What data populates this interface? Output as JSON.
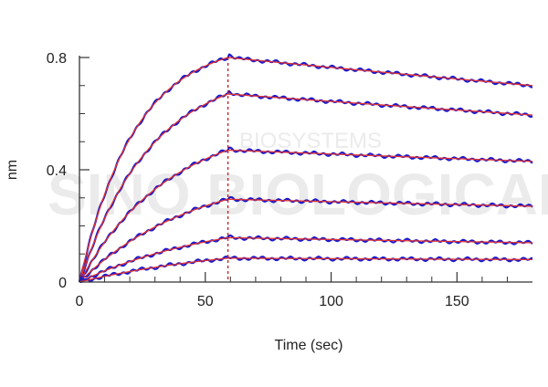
{
  "chart_data": {
    "type": "line",
    "xlabel": "Time (sec)",
    "ylabel": "nm",
    "xlim": [
      0,
      180
    ],
    "ylim": [
      0,
      0.8
    ],
    "x_ticks": [
      {
        "value": 0,
        "label": "0"
      },
      {
        "value": 50,
        "label": "50"
      },
      {
        "value": 100,
        "label": "100"
      },
      {
        "value": 150,
        "label": "150"
      }
    ],
    "y_ticks": [
      {
        "value": 0,
        "label": "0"
      },
      {
        "value": 0.4,
        "label": "0.4"
      },
      {
        "value": 0.8,
        "label": "0.8"
      }
    ],
    "association_end": 59,
    "grid": false,
    "colors": {
      "measured": "#1a1acc",
      "fit": "#e03030",
      "divider": "#cc2222",
      "axis": "#333333",
      "watermark": "#ebebeb"
    },
    "watermark_text": "SINO BIOLOGICAL",
    "watermark_subtext": "BIOSYSTEMS",
    "curves": [
      {
        "peak": 0.8,
        "end": 0.7,
        "k": 0.045
      },
      {
        "peak": 0.67,
        "end": 0.595,
        "k": 0.035
      },
      {
        "peak": 0.47,
        "end": 0.43,
        "k": 0.028
      },
      {
        "peak": 0.295,
        "end": 0.27,
        "k": 0.022
      },
      {
        "peak": 0.158,
        "end": 0.14,
        "k": 0.018
      },
      {
        "peak": 0.085,
        "end": 0.08,
        "k": 0.015
      }
    ]
  }
}
